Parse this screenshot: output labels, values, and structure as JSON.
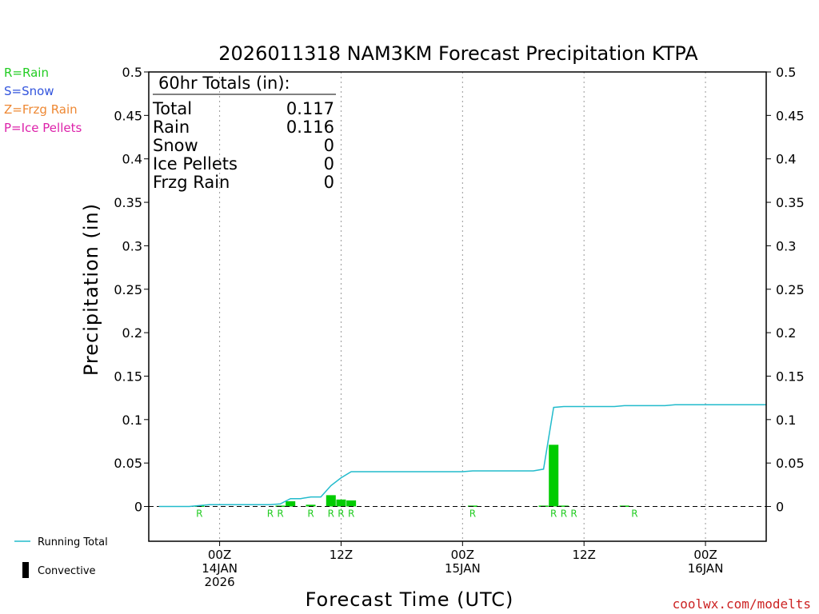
{
  "title": "2026011318 NAM3KM Forecast Precipitation KTPA",
  "legend_keys": [
    {
      "label": "R=Rain",
      "color": "#22cc22"
    },
    {
      "label": "S=Snow",
      "color": "#3355dd"
    },
    {
      "label": "Z=Frzg Rain",
      "color": "#ee8833"
    },
    {
      "label": "P=Ice Pellets",
      "color": "#dd22aa"
    }
  ],
  "totals": {
    "header": "60hr Totals (in):",
    "rows": [
      {
        "label": "Total",
        "value": "0.117"
      },
      {
        "label": "Rain",
        "value": "0.116"
      },
      {
        "label": "Snow",
        "value": "0"
      },
      {
        "label": "Ice Pellets",
        "value": "0"
      },
      {
        "label": "Frzg Rain",
        "value": "0"
      }
    ]
  },
  "bottom_legend": {
    "running_total": "Running Total",
    "convective": "Convective"
  },
  "credit": "coolwx.com/modelts",
  "chart_data": {
    "type": "bar",
    "title": "2026011318 NAM3KM Forecast Precipitation KTPA",
    "xlabel": "Forecast Time (UTC)",
    "ylabel": "Precipitation (in)",
    "ylim": [
      -0.04,
      0.5
    ],
    "yticks": [
      0,
      0.05,
      0.1,
      0.15,
      0.2,
      0.25,
      0.3,
      0.35,
      0.4,
      0.45,
      0.5
    ],
    "ytick_labels": [
      "0",
      "0.05",
      "0.1",
      "0.15",
      "0.2",
      "0.25",
      "0.3",
      "0.35",
      "0.4",
      "0.45",
      "0.5"
    ],
    "x_unit": "forecast hour from 2026-01-13 18Z",
    "xlim": [
      -1,
      60
    ],
    "xticks": [
      {
        "hour": 6,
        "lines": [
          "00Z",
          "14JAN",
          "2026"
        ]
      },
      {
        "hour": 18,
        "lines": [
          "12Z"
        ]
      },
      {
        "hour": 30,
        "lines": [
          "00Z",
          "15JAN"
        ]
      },
      {
        "hour": 42,
        "lines": [
          "12Z"
        ]
      },
      {
        "hour": 54,
        "lines": [
          "00Z",
          "16JAN"
        ]
      }
    ],
    "grid": "vertical dotted at tick hours",
    "series": [
      {
        "name": "Running Total",
        "kind": "line",
        "color": "#22bbcc",
        "x": [
          0,
          3,
          4,
          5,
          6,
          7,
          8,
          9,
          10,
          11,
          12,
          13,
          14,
          15,
          16,
          17,
          18,
          19,
          30,
          31,
          32,
          33,
          37,
          38,
          39,
          40,
          41,
          42,
          43,
          44,
          45,
          46,
          47,
          48,
          49,
          50,
          51,
          52,
          53,
          54,
          55,
          56,
          57,
          58,
          59,
          60
        ],
        "y": [
          0,
          0,
          0.001,
          0.002,
          0.002,
          0.002,
          0.002,
          0.002,
          0.002,
          0.002,
          0.003,
          0.009,
          0.009,
          0.011,
          0.011,
          0.024,
          0.033,
          0.04,
          0.04,
          0.041,
          0.041,
          0.041,
          0.041,
          0.043,
          0.114,
          0.115,
          0.115,
          0.115,
          0.115,
          0.115,
          0.115,
          0.116,
          0.116,
          0.116,
          0.116,
          0.116,
          0.117,
          0.117,
          0.117,
          0.117,
          0.117,
          0.117,
          0.117,
          0.117,
          0.117,
          0.117
        ]
      },
      {
        "name": "Rain",
        "kind": "bar",
        "color": "#00cc00",
        "x": [
          4,
          12,
          13,
          15,
          17,
          18,
          19,
          31,
          38,
          39,
          40,
          46
        ],
        "y": [
          0.001,
          0.001,
          0.006,
          0.002,
          0.013,
          0.008,
          0.007,
          0.001,
          0.001,
          0.071,
          0.001,
          0.001
        ]
      }
    ],
    "precip_type_marks": [
      {
        "hour": 4,
        "label": "R"
      },
      {
        "hour": 11,
        "label": "R"
      },
      {
        "hour": 12,
        "label": "R"
      },
      {
        "hour": 15,
        "label": "R"
      },
      {
        "hour": 17,
        "label": "R"
      },
      {
        "hour": 18,
        "label": "R"
      },
      {
        "hour": 19,
        "label": "R"
      },
      {
        "hour": 31,
        "label": "R"
      },
      {
        "hour": 39,
        "label": "R"
      },
      {
        "hour": 40,
        "label": "R"
      },
      {
        "hour": 41,
        "label": "R"
      },
      {
        "hour": 47,
        "label": "R"
      }
    ]
  }
}
